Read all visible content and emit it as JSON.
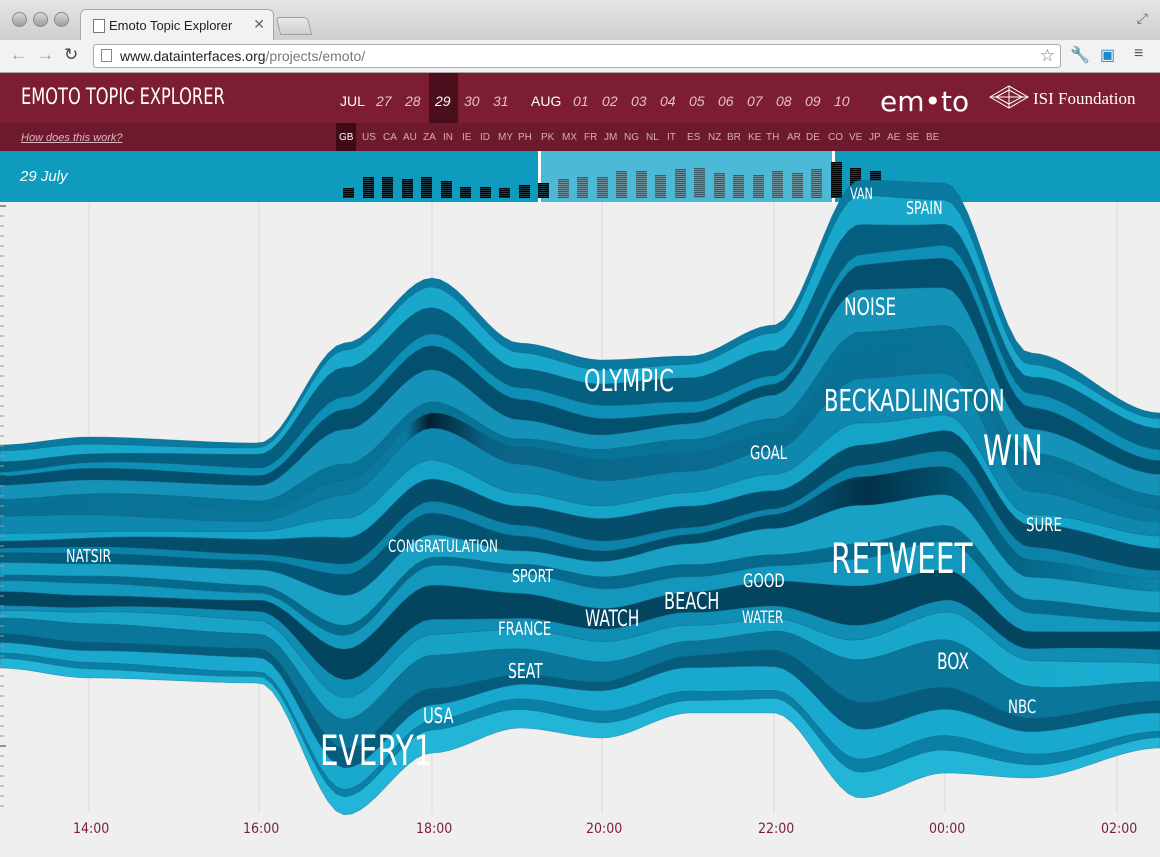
{
  "browser": {
    "tab_title": "Emoto Topic Explorer",
    "url_host": "www.datainterfaces.org",
    "url_path": "/projects/emoto/"
  },
  "app": {
    "title": "EMOTO TOPIC EXPLORER",
    "help_link": "How does this work?",
    "logo_text": "em•to",
    "partner_text": "ISI Foundation",
    "current_date": "29 July",
    "months": [
      "JUL",
      "AUG"
    ],
    "jul_days": [
      "27",
      "28",
      "29",
      "30",
      "31"
    ],
    "aug_days": [
      "01",
      "02",
      "03",
      "04",
      "05",
      "06",
      "07",
      "08",
      "09",
      "10"
    ],
    "selected_day": "29",
    "countries": [
      "GB",
      "US",
      "CA",
      "AU",
      "ZA",
      "IN",
      "IE",
      "ID",
      "MY",
      "PH",
      "PK",
      "MX",
      "FR",
      "JM",
      "NG",
      "NL",
      "IT",
      "ES",
      "NZ",
      "BR",
      "KE",
      "TH",
      "AR",
      "DE",
      "CO",
      "VE",
      "JP",
      "AE",
      "SE",
      "BE"
    ],
    "selected_country": "GB",
    "time_axis": [
      "14:00",
      "16:00",
      "18:00",
      "20:00",
      "22:00",
      "00:00",
      "02:00"
    ],
    "activity_bars": [
      0.25,
      0.55,
      0.55,
      0.5,
      0.55,
      0.45,
      0.3,
      0.3,
      0.25,
      0.35,
      0.4,
      0.5,
      0.55,
      0.55,
      0.7,
      0.7,
      0.6,
      0.75,
      0.8,
      0.65,
      0.6,
      0.6,
      0.7,
      0.65,
      0.75,
      0.95,
      0.8,
      0.7
    ],
    "topics": [
      "VAN",
      "SPAIN",
      "NOISE",
      "OLYMPIC",
      "BECKADLINGTON",
      "WIN",
      "GOAL",
      "CONGRATULATION",
      "NATSIR",
      "SPORT",
      "SURE",
      "RETWEET",
      "GOOD",
      "BEACH",
      "WATCH",
      "FRANCE",
      "WATER",
      "BOX",
      "SEAT",
      "NBC",
      "USA",
      "EVERY1"
    ]
  },
  "colors": {
    "header": "#7d1d34",
    "timebar": "#0f9bbd",
    "stream_light": "#1aa7cc",
    "stream_dark": "#023a52"
  }
}
